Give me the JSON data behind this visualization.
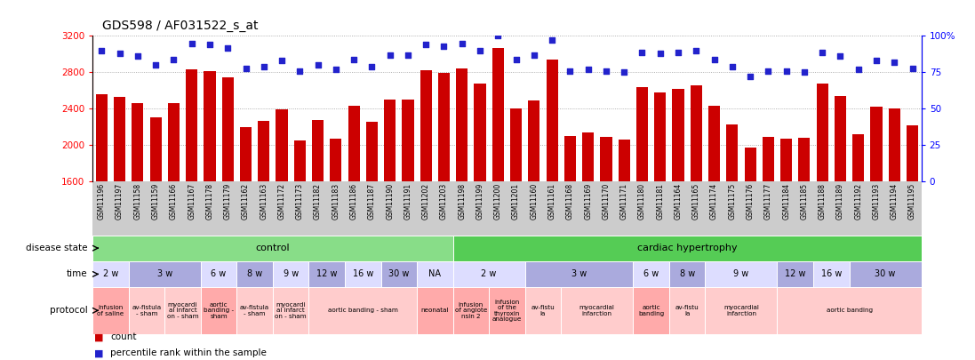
{
  "title": "GDS598 / AF031522_s_at",
  "samples": [
    "GSM11196",
    "GSM11197",
    "GSM11158",
    "GSM11159",
    "GSM11166",
    "GSM11167",
    "GSM11178",
    "GSM11179",
    "GSM11162",
    "GSM11163",
    "GSM11172",
    "GSM11173",
    "GSM11182",
    "GSM11183",
    "GSM11186",
    "GSM11187",
    "GSM11190",
    "GSM11191",
    "GSM11202",
    "GSM11203",
    "GSM11198",
    "GSM11199",
    "GSM11200",
    "GSM11201",
    "GSM11160",
    "GSM11161",
    "GSM11168",
    "GSM11169",
    "GSM11170",
    "GSM11171",
    "GSM11180",
    "GSM11181",
    "GSM11164",
    "GSM11165",
    "GSM11174",
    "GSM11175",
    "GSM11176",
    "GSM11177",
    "GSM11184",
    "GSM11185",
    "GSM11188",
    "GSM11189",
    "GSM11192",
    "GSM11193",
    "GSM11194",
    "GSM11195"
  ],
  "counts": [
    2560,
    2530,
    2460,
    2310,
    2460,
    2830,
    2810,
    2750,
    2200,
    2270,
    2390,
    2050,
    2280,
    2070,
    2430,
    2260,
    2500,
    2500,
    2820,
    2790,
    2840,
    2680,
    3070,
    2400,
    2490,
    2940,
    2100,
    2140,
    2090,
    2060,
    2640,
    2580,
    2620,
    2660,
    2430,
    2230,
    1970,
    2090,
    2070,
    2080,
    2680,
    2540,
    2120,
    2420,
    2400,
    2220
  ],
  "percentile_ranks": [
    90,
    88,
    86,
    80,
    84,
    95,
    94,
    92,
    78,
    79,
    83,
    76,
    80,
    77,
    84,
    79,
    87,
    87,
    94,
    93,
    95,
    90,
    100,
    84,
    87,
    97,
    76,
    77,
    76,
    75,
    89,
    88,
    89,
    90,
    84,
    79,
    72,
    76,
    76,
    75,
    89,
    86,
    77,
    83,
    82,
    78
  ],
  "ylim_left": [
    1600,
    3200
  ],
  "ylim_right": [
    0,
    100
  ],
  "yticks_left": [
    1600,
    2000,
    2400,
    2800,
    3200
  ],
  "yticks_right": [
    0,
    25,
    50,
    75,
    100
  ],
  "bar_color": "#cc0000",
  "dot_color": "#2222cc",
  "disease_state_control_color": "#88dd88",
  "disease_state_hypertrophy_color": "#55cc55",
  "time_color_light": "#ddddff",
  "time_color_dark": "#aaaadd",
  "protocol_color_dark": "#ffaaaa",
  "protocol_color_light": "#ffcccc",
  "row_label_bg": "#cccccc",
  "n_control": 20,
  "n_total": 46,
  "disease_state_labels": [
    {
      "text": "control",
      "start": 0,
      "end": 20
    },
    {
      "text": "cardiac hypertrophy",
      "start": 20,
      "end": 46
    }
  ],
  "time_blocks": [
    {
      "text": "2 w",
      "start": 0,
      "end": 2,
      "shade": 0
    },
    {
      "text": "3 w",
      "start": 2,
      "end": 6,
      "shade": 1
    },
    {
      "text": "6 w",
      "start": 6,
      "end": 8,
      "shade": 0
    },
    {
      "text": "8 w",
      "start": 8,
      "end": 10,
      "shade": 1
    },
    {
      "text": "9 w",
      "start": 10,
      "end": 12,
      "shade": 0
    },
    {
      "text": "12 w",
      "start": 12,
      "end": 14,
      "shade": 1
    },
    {
      "text": "16 w",
      "start": 14,
      "end": 16,
      "shade": 0
    },
    {
      "text": "30 w",
      "start": 16,
      "end": 18,
      "shade": 1
    },
    {
      "text": "NA",
      "start": 18,
      "end": 20,
      "shade": 0
    },
    {
      "text": "2 w",
      "start": 20,
      "end": 24,
      "shade": 0
    },
    {
      "text": "3 w",
      "start": 24,
      "end": 30,
      "shade": 1
    },
    {
      "text": "6 w",
      "start": 30,
      "end": 32,
      "shade": 0
    },
    {
      "text": "8 w",
      "start": 32,
      "end": 34,
      "shade": 1
    },
    {
      "text": "9 w",
      "start": 34,
      "end": 38,
      "shade": 0
    },
    {
      "text": "12 w",
      "start": 38,
      "end": 40,
      "shade": 1
    },
    {
      "text": "16 w",
      "start": 40,
      "end": 42,
      "shade": 0
    },
    {
      "text": "30 w",
      "start": 42,
      "end": 46,
      "shade": 1
    }
  ],
  "protocol_blocks": [
    {
      "text": "infusion\nof saline",
      "start": 0,
      "end": 2,
      "dark": true
    },
    {
      "text": "av-fistula\n- sham",
      "start": 2,
      "end": 4,
      "dark": false
    },
    {
      "text": "myocardi\nal infarct\non - sham",
      "start": 4,
      "end": 6,
      "dark": false
    },
    {
      "text": "aortic\nbanding -\nsham",
      "start": 6,
      "end": 8,
      "dark": true
    },
    {
      "text": "av-fistula\n- sham",
      "start": 8,
      "end": 10,
      "dark": false
    },
    {
      "text": "myocardi\nal infarct\non - sham",
      "start": 10,
      "end": 12,
      "dark": false
    },
    {
      "text": "aortic banding - sham",
      "start": 12,
      "end": 18,
      "dark": false
    },
    {
      "text": "neonatal",
      "start": 18,
      "end": 20,
      "dark": true
    },
    {
      "text": "infusion\nof angiote\nnsin 2",
      "start": 20,
      "end": 22,
      "dark": true
    },
    {
      "text": "infusion\nof the\nthyroxin\nanalogue",
      "start": 22,
      "end": 24,
      "dark": true
    },
    {
      "text": "av-fistu\nla",
      "start": 24,
      "end": 26,
      "dark": false
    },
    {
      "text": "myocardial\ninfarction",
      "start": 26,
      "end": 30,
      "dark": false
    },
    {
      "text": "aortic\nbanding",
      "start": 30,
      "end": 32,
      "dark": true
    },
    {
      "text": "av-fistu\nla",
      "start": 32,
      "end": 34,
      "dark": false
    },
    {
      "text": "myocardial\ninfarction",
      "start": 34,
      "end": 38,
      "dark": false
    },
    {
      "text": "aortic banding",
      "start": 38,
      "end": 46,
      "dark": false
    }
  ]
}
